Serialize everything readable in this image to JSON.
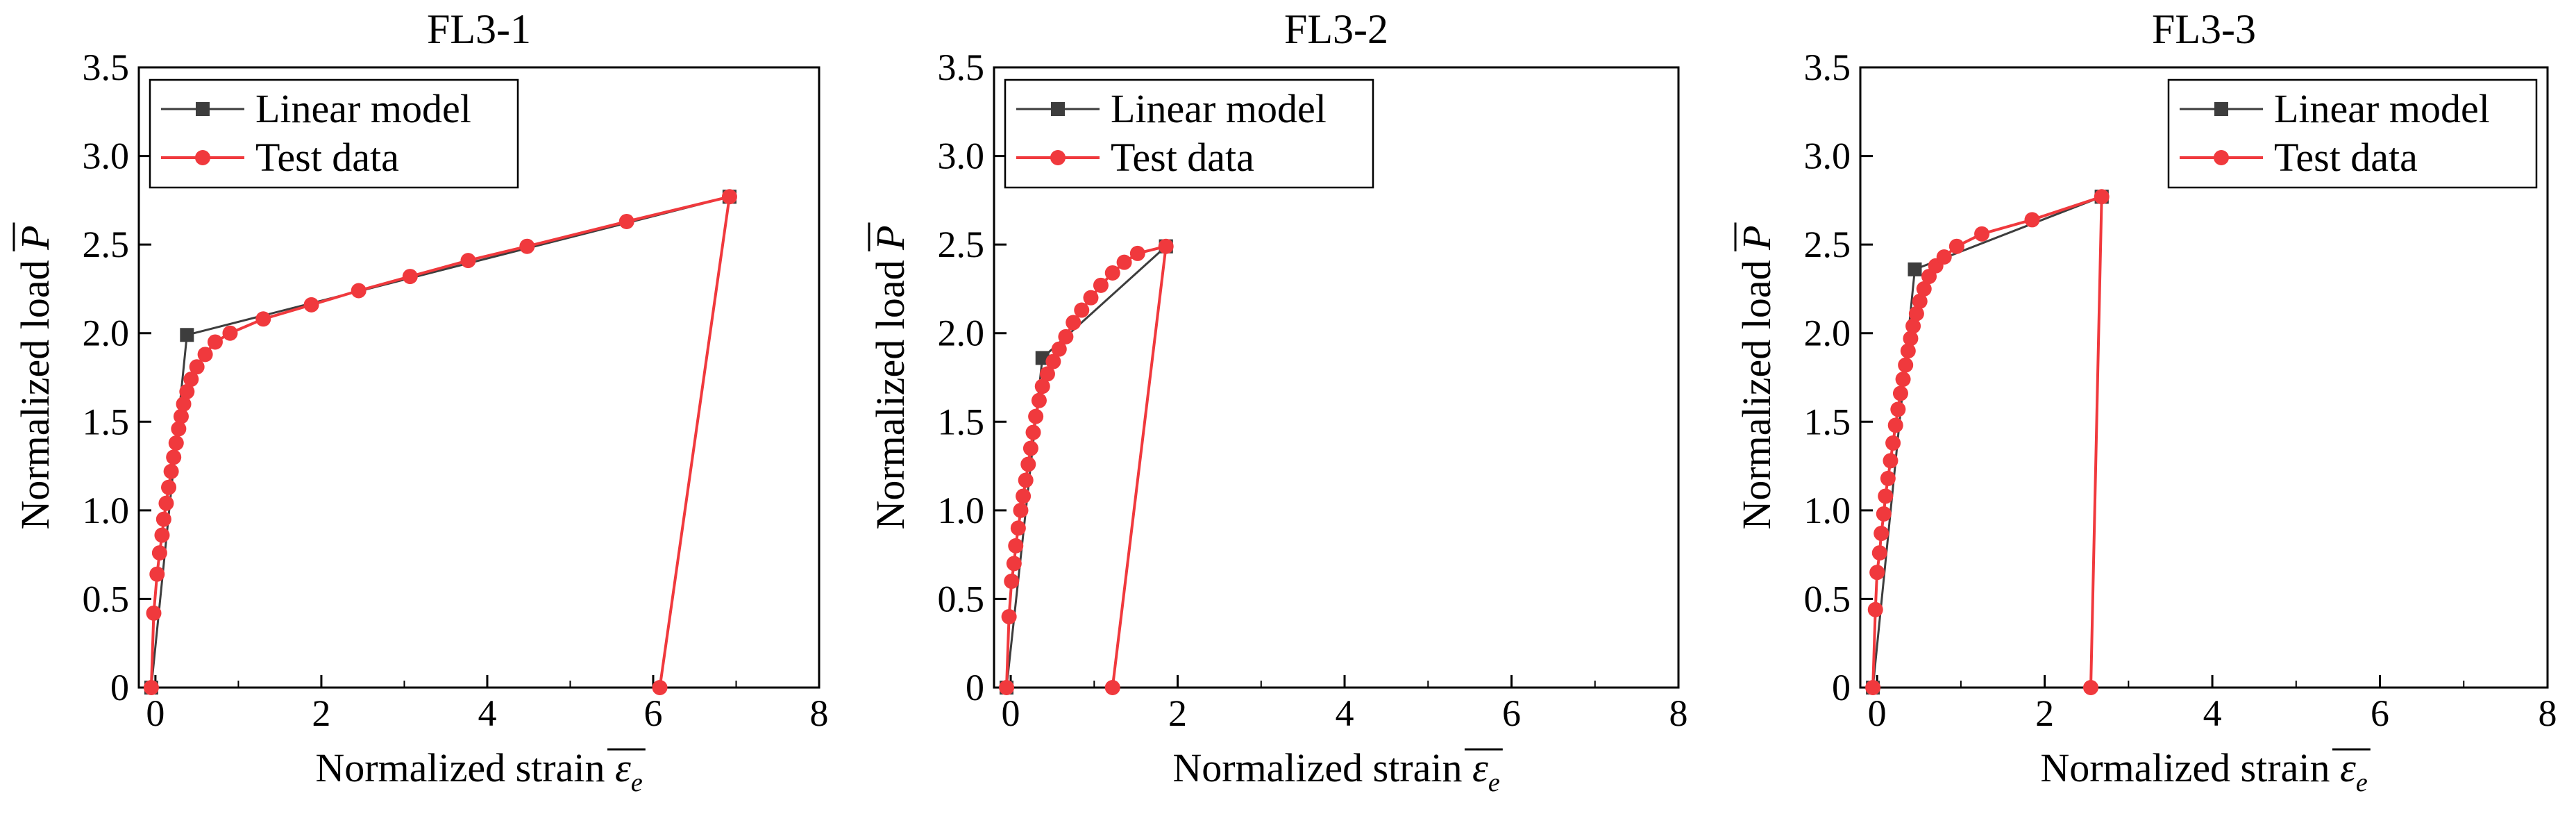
{
  "colors": {
    "linear": "#3d3d3d",
    "test": "#f0393d",
    "axis": "#000000"
  },
  "chart_data": [
    {
      "type": "line",
      "title": "FL3-1",
      "xlabel": "Normalized strain",
      "xlabel_symbol": "ε",
      "xlabel_sub": "e",
      "ylabel": "Normalized load",
      "ylabel_symbol": "P",
      "xlim": [
        -0.2,
        8
      ],
      "ylim": [
        0,
        3.5
      ],
      "xticks": [
        0,
        2,
        4,
        6,
        8
      ],
      "xtick_labels": [
        "0",
        "2",
        "4",
        "6",
        "8"
      ],
      "yticks": [
        0,
        0.5,
        1.0,
        1.5,
        2.0,
        2.5,
        3.0,
        3.5
      ],
      "ytick_labels": [
        "0",
        "0.5",
        "1.0",
        "1.5",
        "2.0",
        "2.5",
        "3.0",
        "3.5"
      ],
      "grid": false,
      "legend_position": "top-left",
      "series": [
        {
          "name": "Linear model",
          "color_key": "linear",
          "marker": "square",
          "x": [
            -0.05,
            0.38,
            6.92,
            6.92
          ],
          "y": [
            0,
            1.99,
            2.77,
            2.77
          ]
        },
        {
          "name": "Test data",
          "color_key": "test",
          "marker": "circle",
          "x": [
            -0.05,
            -0.02,
            0.02,
            0.05,
            0.08,
            0.1,
            0.13,
            0.16,
            0.19,
            0.22,
            0.25,
            0.28,
            0.31,
            0.34,
            0.38,
            0.43,
            0.5,
            0.6,
            0.72,
            0.9,
            1.3,
            1.88,
            2.45,
            3.07,
            3.77,
            4.48,
            5.68,
            6.92,
            6.08
          ],
          "y": [
            0,
            0.42,
            0.64,
            0.76,
            0.86,
            0.95,
            1.04,
            1.13,
            1.22,
            1.3,
            1.38,
            1.46,
            1.53,
            1.6,
            1.67,
            1.74,
            1.81,
            1.88,
            1.95,
            2.0,
            2.08,
            2.16,
            2.24,
            2.32,
            2.41,
            2.49,
            2.63,
            2.77,
            0
          ]
        }
      ]
    },
    {
      "type": "line",
      "title": "FL3-2",
      "xlabel": "Normalized strain",
      "xlabel_symbol": "ε",
      "xlabel_sub": "e",
      "ylabel": "Normalized load",
      "ylabel_symbol": "P",
      "xlim": [
        -0.2,
        8
      ],
      "ylim": [
        0,
        3.5
      ],
      "xticks": [
        0,
        2,
        4,
        6,
        8
      ],
      "xtick_labels": [
        "0",
        "2",
        "4",
        "6",
        "8"
      ],
      "yticks": [
        0,
        0.5,
        1.0,
        1.5,
        2.0,
        2.5,
        3.0,
        3.5
      ],
      "ytick_labels": [
        "0",
        "0.5",
        "1.0",
        "1.5",
        "2.0",
        "2.5",
        "3.0",
        "3.5"
      ],
      "grid": false,
      "legend_position": "top-left",
      "series": [
        {
          "name": "Linear model",
          "color_key": "linear",
          "marker": "square",
          "x": [
            -0.05,
            0.38,
            1.86,
            1.86
          ],
          "y": [
            0,
            1.86,
            2.49,
            2.49
          ]
        },
        {
          "name": "Test data",
          "color_key": "test",
          "marker": "circle",
          "x": [
            -0.05,
            -0.02,
            0.01,
            0.04,
            0.06,
            0.09,
            0.12,
            0.15,
            0.18,
            0.21,
            0.24,
            0.27,
            0.3,
            0.34,
            0.38,
            0.44,
            0.51,
            0.58,
            0.66,
            0.75,
            0.85,
            0.96,
            1.08,
            1.22,
            1.36,
            1.52,
            1.86,
            1.22
          ],
          "y": [
            0,
            0.4,
            0.6,
            0.7,
            0.8,
            0.9,
            1.0,
            1.08,
            1.17,
            1.26,
            1.35,
            1.44,
            1.53,
            1.62,
            1.7,
            1.77,
            1.84,
            1.91,
            1.98,
            2.06,
            2.13,
            2.2,
            2.27,
            2.34,
            2.4,
            2.45,
            2.49,
            0
          ]
        }
      ]
    },
    {
      "type": "line",
      "title": "FL3-3",
      "xlabel": "Normalized strain",
      "xlabel_symbol": "ε",
      "xlabel_sub": "e",
      "ylabel": "Normalized load",
      "ylabel_symbol": "P",
      "xlim": [
        -0.2,
        8
      ],
      "ylim": [
        0,
        3.5
      ],
      "xticks": [
        0,
        2,
        4,
        6,
        8
      ],
      "xtick_labels": [
        "0",
        "2",
        "4",
        "6",
        "8"
      ],
      "yticks": [
        0,
        0.5,
        1.0,
        1.5,
        2.0,
        2.5,
        3.0,
        3.5
      ],
      "ytick_labels": [
        "0",
        "0.5",
        "1.0",
        "1.5",
        "2.0",
        "2.5",
        "3.0",
        "3.5"
      ],
      "grid": false,
      "legend_position": "top-right",
      "series": [
        {
          "name": "Linear model",
          "color_key": "linear",
          "marker": "square",
          "x": [
            -0.05,
            0.45,
            2.68,
            2.68
          ],
          "y": [
            0,
            2.36,
            2.77,
            2.77
          ]
        },
        {
          "name": "Test data",
          "color_key": "test",
          "marker": "circle",
          "x": [
            -0.05,
            -0.02,
            0.0,
            0.03,
            0.05,
            0.08,
            0.1,
            0.13,
            0.16,
            0.19,
            0.22,
            0.25,
            0.28,
            0.31,
            0.34,
            0.37,
            0.4,
            0.43,
            0.47,
            0.51,
            0.56,
            0.62,
            0.7,
            0.8,
            0.95,
            1.25,
            1.85,
            2.68,
            2.55
          ],
          "y": [
            0,
            0.44,
            0.65,
            0.76,
            0.87,
            0.98,
            1.08,
            1.18,
            1.28,
            1.38,
            1.48,
            1.57,
            1.66,
            1.74,
            1.82,
            1.9,
            1.97,
            2.04,
            2.11,
            2.18,
            2.25,
            2.32,
            2.38,
            2.43,
            2.49,
            2.56,
            2.64,
            2.77,
            0
          ]
        }
      ]
    }
  ]
}
